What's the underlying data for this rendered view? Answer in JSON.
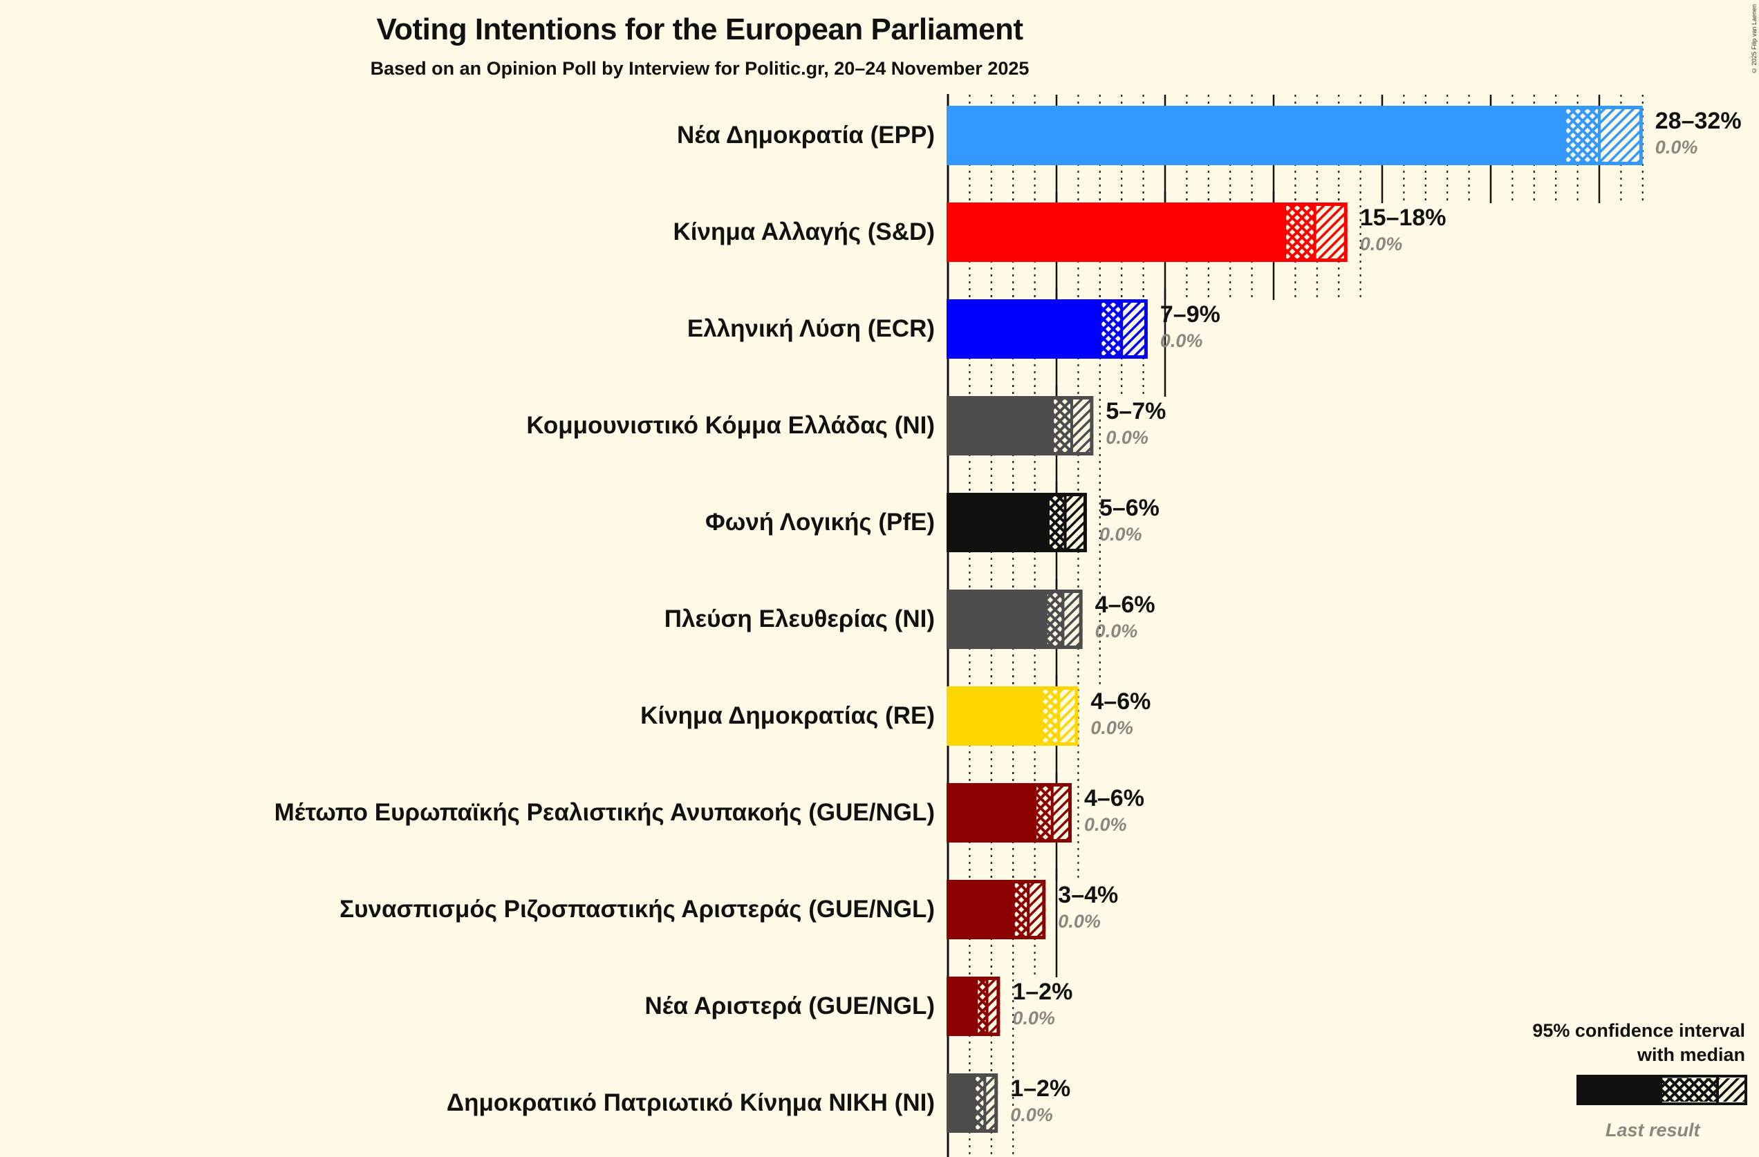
{
  "header": {
    "title": "Voting Intentions for the European Parliament",
    "subtitle": "Based on an Opinion Poll by Interview for Politic.gr, 20–24 November 2025",
    "copyright": "© 2025 Filip van Laenen"
  },
  "legend": {
    "title_line1": "95% confidence interval",
    "title_line2": "with median",
    "last_result": "Last result"
  },
  "chart_data": {
    "type": "bar",
    "orientation": "horizontal",
    "title": "Voting Intentions for the European Parliament",
    "subtitle": "Based on an Opinion Poll by Interview for Politic.gr, 20–24 November 2025",
    "xlabel": "",
    "ylabel": "",
    "xlim": [
      0,
      33
    ],
    "grid": {
      "major_every": 5,
      "minor_every": 1
    },
    "legend": [
      "95% confidence interval with median",
      "Last result"
    ],
    "categories": [
      "Νέα Δημοκρατία (EPP)",
      "Κίνημα Αλλαγής (S&D)",
      "Ελληνική Λύση (ECR)",
      "Κομμουνιστικό Κόμμα Ελλάδας (NI)",
      "Φωνή Λογικής (PfE)",
      "Πλεύση Ελευθερίας (NI)",
      "Κίνημα Δημοκρατίας (RE)",
      "Μέτωπο Ευρωπαϊκής Ρεαλιστικής Ανυπακοής (GUE/NGL)",
      "Συνασπισμός Ριζοσπαστικής Αριστεράς (GUE/NGL)",
      "Νέα Αριστερά (GUE/NGL)",
      "Δημοκρατικό Πατριωτικό Κίνημα ΝΙΚΗ (NI)"
    ],
    "series": [
      {
        "name": "CI lower",
        "values": [
          28.4,
          15.5,
          7.0,
          4.8,
          4.6,
          4.5,
          4.3,
          4.0,
          3.0,
          1.3,
          1.2
        ]
      },
      {
        "name": "Median",
        "values": [
          30.0,
          16.9,
          8.0,
          5.7,
          5.4,
          5.3,
          5.1,
          4.8,
          3.7,
          1.8,
          1.7
        ]
      },
      {
        "name": "CI upper",
        "values": [
          32.0,
          18.4,
          9.2,
          6.7,
          6.4,
          6.2,
          6.0,
          5.7,
          4.5,
          2.4,
          2.3
        ]
      },
      {
        "name": "Last result",
        "values": [
          0.0,
          0.0,
          0.0,
          0.0,
          0.0,
          0.0,
          0.0,
          0.0,
          0.0,
          0.0,
          0.0
        ]
      }
    ],
    "range_labels": [
      "28–32%",
      "15–18%",
      "7–9%",
      "5–7%",
      "5–6%",
      "4–6%",
      "4–6%",
      "4–6%",
      "3–4%",
      "1–2%",
      "1–2%"
    ],
    "last_labels": [
      "0.0%",
      "0.0%",
      "0.0%",
      "0.0%",
      "0.0%",
      "0.0%",
      "0.0%",
      "0.0%",
      "0.0%",
      "0.0%",
      "0.0%"
    ],
    "colors": [
      "#3399ff",
      "#ff0000",
      "#0000ff",
      "#4d4d4d",
      "#111111",
      "#4d4d4d",
      "#ffd700",
      "#8b0000",
      "#8b0000",
      "#8b0000",
      "#4d4d4d"
    ]
  }
}
